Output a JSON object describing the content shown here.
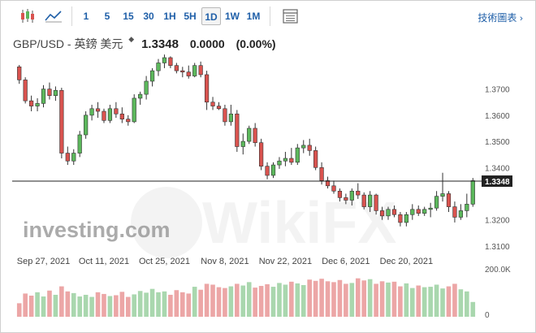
{
  "toolbar": {
    "icons": [
      "candlestick-chart-icon",
      "area-chart-icon"
    ],
    "timeframes": [
      "1",
      "5",
      "15",
      "30",
      "1H",
      "5H",
      "1D",
      "1W",
      "1M"
    ],
    "active_timeframe": "1D",
    "table_icon": "table-icon",
    "technical_link": "技術圖表",
    "chevron": "›"
  },
  "header": {
    "pair": "GBP/USD - 英鎊 美元",
    "marker": "◆",
    "price": "1.3348",
    "change": "0.0000",
    "change_pct": "(0.00%)"
  },
  "watermark": {
    "text": "WikiFX",
    "logo": "investing.com"
  },
  "colors": {
    "up": "#5cb85c",
    "down": "#d9534f",
    "up_volume": "#a9d7ae",
    "down_volume": "#eca6a6",
    "axis_text": "#555555",
    "link": "#1f5fa8"
  },
  "chart_data": {
    "type": "candlestick",
    "ylim": [
      1.305,
      1.382
    ],
    "y_ticks": [
      "1.3700",
      "1.3600",
      "1.3500",
      "1.3400",
      "1.3200",
      "1.3100"
    ],
    "x_ticks": [
      "Sep 27, 2021",
      "Oct 11, 2021",
      "Oct 25, 2021",
      "Nov 8, 2021",
      "Nov 22, 2021",
      "Dec 6, 2021",
      "Dec 20, 2021"
    ],
    "last_price_label": "1.3348",
    "volume_ticks": [
      "200.0K",
      "0"
    ],
    "candles": [
      [
        1.3785,
        1.3792,
        1.372,
        1.3735
      ],
      [
        1.3735,
        1.3745,
        1.3645,
        1.3655
      ],
      [
        1.3655,
        1.3675,
        1.3615,
        1.3635
      ],
      [
        1.3635,
        1.3665,
        1.3615,
        1.3645
      ],
      [
        1.3645,
        1.3715,
        1.363,
        1.37
      ],
      [
        1.37,
        1.3725,
        1.366,
        1.3675
      ],
      [
        1.3675,
        1.371,
        1.3655,
        1.3695
      ],
      [
        1.3695,
        1.3705,
        1.3435,
        1.3455
      ],
      [
        1.3455,
        1.348,
        1.341,
        1.3425
      ],
      [
        1.3425,
        1.347,
        1.341,
        1.3455
      ],
      [
        1.3455,
        1.354,
        1.344,
        1.3525
      ],
      [
        1.3525,
        1.3615,
        1.351,
        1.36
      ],
      [
        1.36,
        1.364,
        1.358,
        1.3625
      ],
      [
        1.3625,
        1.365,
        1.359,
        1.3615
      ],
      [
        1.3615,
        1.3625,
        1.357,
        1.358
      ],
      [
        1.358,
        1.364,
        1.357,
        1.3625
      ],
      [
        1.3625,
        1.365,
        1.359,
        1.3605
      ],
      [
        1.3605,
        1.363,
        1.357,
        1.3585
      ],
      [
        1.3585,
        1.36,
        1.356,
        1.3575
      ],
      [
        1.3575,
        1.368,
        1.357,
        1.3665
      ],
      [
        1.3665,
        1.369,
        1.364,
        1.368
      ],
      [
        1.368,
        1.375,
        1.366,
        1.373
      ],
      [
        1.373,
        1.378,
        1.371,
        1.377
      ],
      [
        1.377,
        1.3815,
        1.375,
        1.38
      ],
      [
        1.38,
        1.3832,
        1.378,
        1.382
      ],
      [
        1.382,
        1.3825,
        1.378,
        1.379
      ],
      [
        1.379,
        1.38,
        1.376,
        1.377
      ],
      [
        1.377,
        1.3785,
        1.3745,
        1.3765
      ],
      [
        1.3765,
        1.379,
        1.374,
        1.375
      ],
      [
        1.375,
        1.38,
        1.3745,
        1.379
      ],
      [
        1.379,
        1.3805,
        1.3745,
        1.3755
      ],
      [
        1.3755,
        1.377,
        1.362,
        1.365
      ],
      [
        1.365,
        1.367,
        1.362,
        1.3635
      ],
      [
        1.3635,
        1.365,
        1.362,
        1.3625
      ],
      [
        1.3625,
        1.364,
        1.356,
        1.3575
      ],
      [
        1.3575,
        1.364,
        1.356,
        1.3605
      ],
      [
        1.3605,
        1.362,
        1.346,
        1.348
      ],
      [
        1.348,
        1.353,
        1.345,
        1.35
      ],
      [
        1.35,
        1.356,
        1.349,
        1.355
      ],
      [
        1.355,
        1.357,
        1.348,
        1.3495
      ],
      [
        1.3495,
        1.351,
        1.339,
        1.3405
      ],
      [
        1.3405,
        1.342,
        1.3355,
        1.337
      ],
      [
        1.337,
        1.342,
        1.336,
        1.341
      ],
      [
        1.341,
        1.344,
        1.3395,
        1.3425
      ],
      [
        1.3425,
        1.346,
        1.3405,
        1.3435
      ],
      [
        1.3435,
        1.3475,
        1.341,
        1.342
      ],
      [
        1.342,
        1.349,
        1.341,
        1.3475
      ],
      [
        1.3475,
        1.3505,
        1.3455,
        1.3485
      ],
      [
        1.3485,
        1.351,
        1.3445,
        1.3465
      ],
      [
        1.3465,
        1.348,
        1.339,
        1.34
      ],
      [
        1.34,
        1.342,
        1.3335,
        1.335
      ],
      [
        1.335,
        1.3365,
        1.332,
        1.333
      ],
      [
        1.333,
        1.335,
        1.33,
        1.331
      ],
      [
        1.331,
        1.332,
        1.327,
        1.3285
      ],
      [
        1.3285,
        1.33,
        1.326,
        1.3275
      ],
      [
        1.3275,
        1.332,
        1.3255,
        1.331
      ],
      [
        1.331,
        1.334,
        1.328,
        1.3295
      ],
      [
        1.3295,
        1.3305,
        1.324,
        1.325
      ],
      [
        1.325,
        1.331,
        1.323,
        1.3295
      ],
      [
        1.3295,
        1.33,
        1.322,
        1.3235
      ],
      [
        1.3235,
        1.325,
        1.32,
        1.3215
      ],
      [
        1.3215,
        1.325,
        1.32,
        1.324
      ],
      [
        1.324,
        1.3255,
        1.321,
        1.322
      ],
      [
        1.322,
        1.323,
        1.3175,
        1.319
      ],
      [
        1.319,
        1.323,
        1.3175,
        1.322
      ],
      [
        1.322,
        1.326,
        1.32,
        1.324
      ],
      [
        1.324,
        1.3255,
        1.3215,
        1.3225
      ],
      [
        1.3225,
        1.325,
        1.3215,
        1.324
      ],
      [
        1.324,
        1.3265,
        1.321,
        1.3245
      ],
      [
        1.3245,
        1.331,
        1.3235,
        1.329
      ],
      [
        1.329,
        1.338,
        1.327,
        1.33
      ],
      [
        1.33,
        1.331,
        1.323,
        1.325
      ],
      [
        1.325,
        1.327,
        1.319,
        1.321
      ],
      [
        1.321,
        1.326,
        1.32,
        1.3235
      ],
      [
        1.3235,
        1.33,
        1.321,
        1.326
      ],
      [
        1.326,
        1.336,
        1.325,
        1.335
      ]
    ],
    "volumes": [
      0.32,
      0.55,
      0.5,
      0.58,
      0.48,
      0.62,
      0.52,
      0.72,
      0.6,
      0.56,
      0.48,
      0.52,
      0.47,
      0.58,
      0.54,
      0.49,
      0.51,
      0.59,
      0.47,
      0.53,
      0.61,
      0.57,
      0.66,
      0.58,
      0.6,
      0.52,
      0.63,
      0.58,
      0.55,
      0.71,
      0.64,
      0.78,
      0.76,
      0.7,
      0.68,
      0.72,
      0.78,
      0.74,
      0.82,
      0.69,
      0.73,
      0.77,
      0.71,
      0.8,
      0.76,
      0.83,
      0.79,
      0.75,
      0.88,
      0.85,
      0.9,
      0.84,
      0.82,
      0.87,
      0.78,
      0.8,
      0.91,
      0.86,
      0.89,
      0.78,
      0.84,
      0.81,
      0.83,
      0.72,
      0.79,
      0.68,
      0.74,
      0.7,
      0.71,
      0.76,
      0.67,
      0.72,
      0.78,
      0.65,
      0.6,
      0.35
    ]
  }
}
